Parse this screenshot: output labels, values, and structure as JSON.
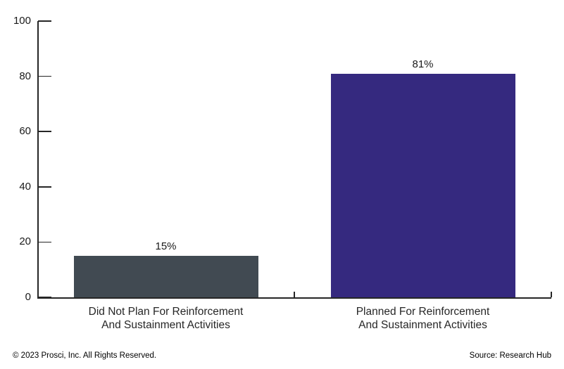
{
  "chart_data": {
    "type": "bar",
    "title": "",
    "xlabel": "",
    "ylabel": "",
    "categories": [
      "Did Not Plan For Reinforcement And Sustainment Activities",
      "Planned For Reinforcement And Sustainment Activities"
    ],
    "category_label_lines": [
      [
        "Did Not Plan For Reinforcement",
        "And Sustainment Activities"
      ],
      [
        "Planned For Reinforcement",
        "And Sustainment Activities"
      ]
    ],
    "values": [
      15,
      81
    ],
    "value_labels": [
      "15%",
      "81%"
    ],
    "bar_colors": [
      "#414a52",
      "#35297f"
    ],
    "ylim": [
      0,
      100
    ],
    "yticks": [
      0,
      20,
      40,
      60,
      80,
      100
    ],
    "grid": false,
    "legend": false
  },
  "footer": {
    "copyright": "© 2023 Prosci, Inc. All Rights Reserved.",
    "source": "Source: Research Hub"
  },
  "colors": {
    "axis": "#262626",
    "text": "#1a1a1a",
    "background": "#ffffff"
  }
}
